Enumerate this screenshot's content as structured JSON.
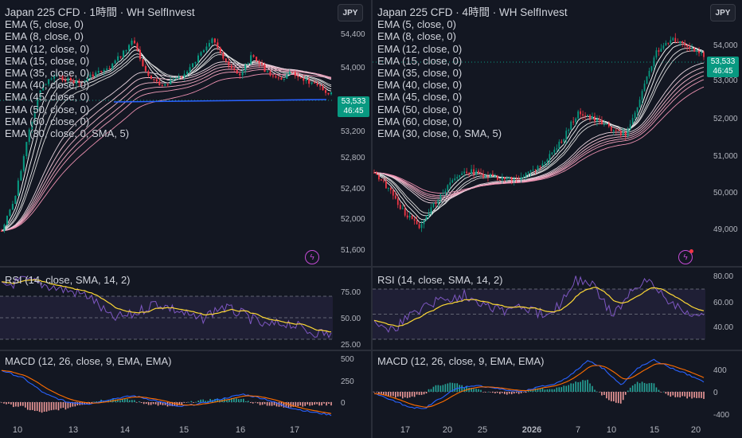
{
  "colors": {
    "background": "#131722",
    "up_candle": "#089981",
    "down_candle": "#f23645",
    "rsi_line": "#7e57c2",
    "rsi_ma": "#fdd835",
    "macd_line": "#2962ff",
    "signal_line": "#ff6d00",
    "support_line": "#2962ff"
  },
  "indicator_legend": [
    "EMA (5, close, 0)",
    "EMA (8, close, 0)",
    "EMA (12, close, 0)",
    "EMA (15, close, 0)",
    "EMA (35, close, 0)",
    "EMA (40, close, 0)",
    "EMA (45, close, 0)",
    "EMA (50, close, 0)",
    "EMA (60, close, 0)",
    "EMA (30, close, 0, SMA, 5)"
  ],
  "left": {
    "title": "Japan 225 CFD · 1時間 · WH SelfInvest",
    "currency": "JPY",
    "last_price": "53,533",
    "countdown": "46:45",
    "price_axis": [
      "54,400",
      "54,000",
      "53,600",
      "53,200",
      "52,800",
      "52,400",
      "52,000",
      "51,600"
    ],
    "rsi_label": "RSI (14, close, SMA, 14, 2)",
    "rsi_axis": [
      "75.00",
      "50.00",
      "25.00"
    ],
    "macd_label": "MACD (12, 26, close, 9, EMA, EMA)",
    "macd_axis": [
      "500",
      "250",
      "0"
    ],
    "time_axis": [
      "10",
      "13",
      "14",
      "15",
      "16",
      "17"
    ]
  },
  "right": {
    "title": "Japan 225 CFD · 4時間 · WH SelfInvest",
    "currency": "JPY",
    "last_price": "53,533",
    "countdown": "46:45",
    "price_axis": [
      "54,000",
      "53,000",
      "52,000",
      "51,000",
      "50,000",
      "49,000"
    ],
    "rsi_label": "RSI (14, close, SMA, 14, 2)",
    "rsi_axis": [
      "80.00",
      "60.00",
      "40.00"
    ],
    "macd_label": "MACD (12, 26, close, 9, EMA, EMA)",
    "macd_axis": [
      "400",
      "0",
      "-400"
    ],
    "time_axis": [
      "17",
      "20",
      "25",
      "2026",
      "7",
      "10",
      "15",
      "20"
    ]
  }
}
